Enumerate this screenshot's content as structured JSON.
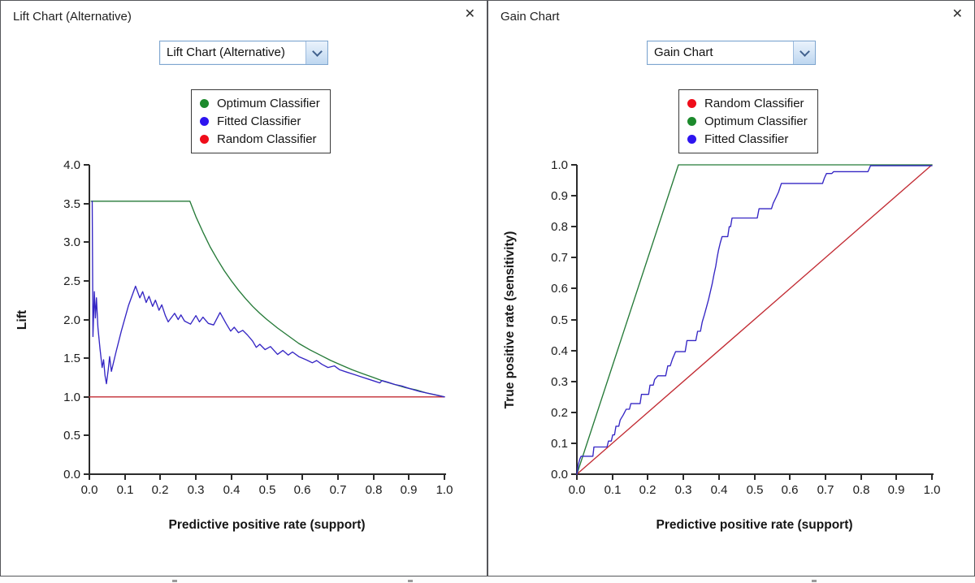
{
  "icons": {
    "close": "✕",
    "dropdown_chevron": "chevron-down"
  },
  "panels": [
    {
      "title": "Lift Chart (Alternative)",
      "dropdown_value": "Lift Chart (Alternative)",
      "legend": [
        {
          "label": "Optimum Classifier",
          "color": "#1c8a2c"
        },
        {
          "label": "Fitted Classifier",
          "color": "#2d14f0"
        },
        {
          "label": "Random Classifier",
          "color": "#ef0d1a"
        }
      ]
    },
    {
      "title": "Gain Chart",
      "dropdown_value": "Gain Chart",
      "legend": [
        {
          "label": "Random Classifier",
          "color": "#ef0d1a"
        },
        {
          "label": "Optimum Classifier",
          "color": "#1c8a2c"
        },
        {
          "label": "Fitted Classifier",
          "color": "#2d14f0"
        }
      ]
    }
  ],
  "chart_data": [
    {
      "type": "line",
      "title": "Lift Chart (Alternative)",
      "xlabel": "Predictive positive rate (support)",
      "ylabel": "Lift",
      "xlim": [
        0,
        1
      ],
      "ylim": [
        0,
        4
      ],
      "xticks": [
        "0.0",
        "0.1",
        "0.2",
        "0.3",
        "0.4",
        "0.5",
        "0.6",
        "0.7",
        "0.8",
        "0.9",
        "1.0"
      ],
      "yticks": [
        "0.0",
        "0.5",
        "1.0",
        "1.5",
        "2.0",
        "2.5",
        "3.0",
        "3.5",
        "4.0"
      ],
      "grid": false,
      "legend_position": "top-center",
      "series": [
        {
          "name": "Optimum Classifier",
          "color": "#257a38",
          "points": [
            [
              0.005,
              3.53
            ],
            [
              0.283,
              3.53
            ],
            [
              0.3,
              3.33
            ],
            [
              0.32,
              3.13
            ],
            [
              0.34,
              2.94
            ],
            [
              0.36,
              2.78
            ],
            [
              0.38,
              2.63
            ],
            [
              0.4,
              2.5
            ],
            [
              0.42,
              2.38
            ],
            [
              0.44,
              2.27
            ],
            [
              0.46,
              2.17
            ],
            [
              0.48,
              2.08
            ],
            [
              0.5,
              2.0
            ],
            [
              0.53,
              1.89
            ],
            [
              0.56,
              1.79
            ],
            [
              0.59,
              1.69
            ],
            [
              0.62,
              1.61
            ],
            [
              0.65,
              1.54
            ],
            [
              0.68,
              1.47
            ],
            [
              0.71,
              1.41
            ],
            [
              0.74,
              1.35
            ],
            [
              0.77,
              1.3
            ],
            [
              0.8,
              1.25
            ],
            [
              0.83,
              1.2
            ],
            [
              0.86,
              1.16
            ],
            [
              0.89,
              1.12
            ],
            [
              0.92,
              1.09
            ],
            [
              0.95,
              1.05
            ],
            [
              0.98,
              1.02
            ],
            [
              1.0,
              1.0
            ]
          ]
        },
        {
          "name": "Random Classifier",
          "color": "#c22b33",
          "points": [
            [
              0.0,
              1.0
            ],
            [
              1.0,
              1.0
            ]
          ]
        },
        {
          "name": "Fitted Classifier",
          "color": "#3526c4",
          "points": [
            [
              0.008,
              3.53
            ],
            [
              0.01,
              1.78
            ],
            [
              0.014,
              2.36
            ],
            [
              0.017,
              2.02
            ],
            [
              0.02,
              2.28
            ],
            [
              0.024,
              1.9
            ],
            [
              0.03,
              1.62
            ],
            [
              0.036,
              1.38
            ],
            [
              0.04,
              1.48
            ],
            [
              0.044,
              1.28
            ],
            [
              0.048,
              1.17
            ],
            [
              0.053,
              1.35
            ],
            [
              0.057,
              1.52
            ],
            [
              0.062,
              1.33
            ],
            [
              0.075,
              1.58
            ],
            [
              0.09,
              1.85
            ],
            [
              0.11,
              2.18
            ],
            [
              0.13,
              2.43
            ],
            [
              0.142,
              2.28
            ],
            [
              0.15,
              2.36
            ],
            [
              0.16,
              2.22
            ],
            [
              0.168,
              2.3
            ],
            [
              0.178,
              2.17
            ],
            [
              0.186,
              2.25
            ],
            [
              0.196,
              2.12
            ],
            [
              0.204,
              2.19
            ],
            [
              0.214,
              2.05
            ],
            [
              0.222,
              1.97
            ],
            [
              0.24,
              2.08
            ],
            [
              0.25,
              2.0
            ],
            [
              0.258,
              2.06
            ],
            [
              0.268,
              1.98
            ],
            [
              0.285,
              1.94
            ],
            [
              0.3,
              2.05
            ],
            [
              0.31,
              1.97
            ],
            [
              0.32,
              2.03
            ],
            [
              0.335,
              1.95
            ],
            [
              0.35,
              1.93
            ],
            [
              0.368,
              2.09
            ],
            [
              0.385,
              1.95
            ],
            [
              0.398,
              1.85
            ],
            [
              0.408,
              1.9
            ],
            [
              0.42,
              1.83
            ],
            [
              0.432,
              1.86
            ],
            [
              0.445,
              1.8
            ],
            [
              0.46,
              1.72
            ],
            [
              0.47,
              1.64
            ],
            [
              0.48,
              1.68
            ],
            [
              0.495,
              1.61
            ],
            [
              0.51,
              1.65
            ],
            [
              0.53,
              1.55
            ],
            [
              0.545,
              1.6
            ],
            [
              0.56,
              1.54
            ],
            [
              0.572,
              1.58
            ],
            [
              0.59,
              1.52
            ],
            [
              0.61,
              1.48
            ],
            [
              0.628,
              1.44
            ],
            [
              0.64,
              1.47
            ],
            [
              0.655,
              1.42
            ],
            [
              0.672,
              1.38
            ],
            [
              0.69,
              1.4
            ],
            [
              0.705,
              1.35
            ],
            [
              0.725,
              1.32
            ],
            [
              0.745,
              1.29
            ],
            [
              0.765,
              1.26
            ],
            [
              0.785,
              1.23
            ],
            [
              0.805,
              1.2
            ],
            [
              0.818,
              1.18
            ],
            [
              0.824,
              1.21
            ],
            [
              0.84,
              1.19
            ],
            [
              0.86,
              1.16
            ],
            [
              0.88,
              1.14
            ],
            [
              0.9,
              1.11
            ],
            [
              0.93,
              1.07
            ],
            [
              0.96,
              1.04
            ],
            [
              1.0,
              1.0
            ]
          ]
        }
      ]
    },
    {
      "type": "line",
      "title": "Gain Chart",
      "xlabel": "Predictive positive rate (support)",
      "ylabel": "True positive rate (sensitivity)",
      "xlim": [
        0,
        1
      ],
      "ylim": [
        0,
        1
      ],
      "xticks": [
        "0.0",
        "0.1",
        "0.2",
        "0.3",
        "0.4",
        "0.5",
        "0.6",
        "0.7",
        "0.8",
        "0.9",
        "1.0"
      ],
      "yticks": [
        "0.0",
        "0.1",
        "0.2",
        "0.3",
        "0.4",
        "0.5",
        "0.6",
        "0.7",
        "0.8",
        "0.9",
        "1.0"
      ],
      "grid": false,
      "legend_position": "top-center",
      "series": [
        {
          "name": "Random Classifier",
          "color": "#c22b33",
          "points": [
            [
              0,
              0
            ],
            [
              1,
              1
            ]
          ]
        },
        {
          "name": "Optimum Classifier",
          "color": "#257a38",
          "points": [
            [
              0,
              0
            ],
            [
              0.286,
              1.0
            ],
            [
              1.0,
              1.0
            ]
          ]
        },
        {
          "name": "Fitted Classifier",
          "color": "#3526c4",
          "points": [
            [
              0,
              0
            ],
            [
              0.004,
              0.03
            ],
            [
              0.008,
              0.048
            ],
            [
              0.012,
              0.058
            ],
            [
              0.045,
              0.058
            ],
            [
              0.048,
              0.088
            ],
            [
              0.085,
              0.088
            ],
            [
              0.089,
              0.107
            ],
            [
              0.097,
              0.107
            ],
            [
              0.101,
              0.127
            ],
            [
              0.106,
              0.127
            ],
            [
              0.11,
              0.155
            ],
            [
              0.118,
              0.155
            ],
            [
              0.122,
              0.175
            ],
            [
              0.131,
              0.192
            ],
            [
              0.139,
              0.21
            ],
            [
              0.148,
              0.21
            ],
            [
              0.152,
              0.228
            ],
            [
              0.178,
              0.228
            ],
            [
              0.182,
              0.258
            ],
            [
              0.202,
              0.258
            ],
            [
              0.206,
              0.288
            ],
            [
              0.215,
              0.288
            ],
            [
              0.219,
              0.306
            ],
            [
              0.228,
              0.318
            ],
            [
              0.25,
              0.318
            ],
            [
              0.256,
              0.35
            ],
            [
              0.263,
              0.35
            ],
            [
              0.269,
              0.372
            ],
            [
              0.278,
              0.396
            ],
            [
              0.305,
              0.396
            ],
            [
              0.31,
              0.432
            ],
            [
              0.335,
              0.432
            ],
            [
              0.34,
              0.462
            ],
            [
              0.348,
              0.462
            ],
            [
              0.353,
              0.492
            ],
            [
              0.359,
              0.515
            ],
            [
              0.365,
              0.54
            ],
            [
              0.371,
              0.565
            ],
            [
              0.376,
              0.59
            ],
            [
              0.381,
              0.615
            ],
            [
              0.386,
              0.645
            ],
            [
              0.391,
              0.672
            ],
            [
              0.395,
              0.7
            ],
            [
              0.399,
              0.725
            ],
            [
              0.404,
              0.748
            ],
            [
              0.409,
              0.768
            ],
            [
              0.425,
              0.768
            ],
            [
              0.429,
              0.8
            ],
            [
              0.433,
              0.8
            ],
            [
              0.437,
              0.828
            ],
            [
              0.508,
              0.828
            ],
            [
              0.513,
              0.858
            ],
            [
              0.548,
              0.858
            ],
            [
              0.553,
              0.876
            ],
            [
              0.561,
              0.895
            ],
            [
              0.568,
              0.912
            ],
            [
              0.576,
              0.94
            ],
            [
              0.692,
              0.94
            ],
            [
              0.697,
              0.957
            ],
            [
              0.703,
              0.972
            ],
            [
              0.718,
              0.972
            ],
            [
              0.723,
              0.978
            ],
            [
              0.82,
              0.978
            ],
            [
              0.827,
              0.997
            ],
            [
              1.0,
              0.997
            ]
          ]
        }
      ]
    }
  ]
}
